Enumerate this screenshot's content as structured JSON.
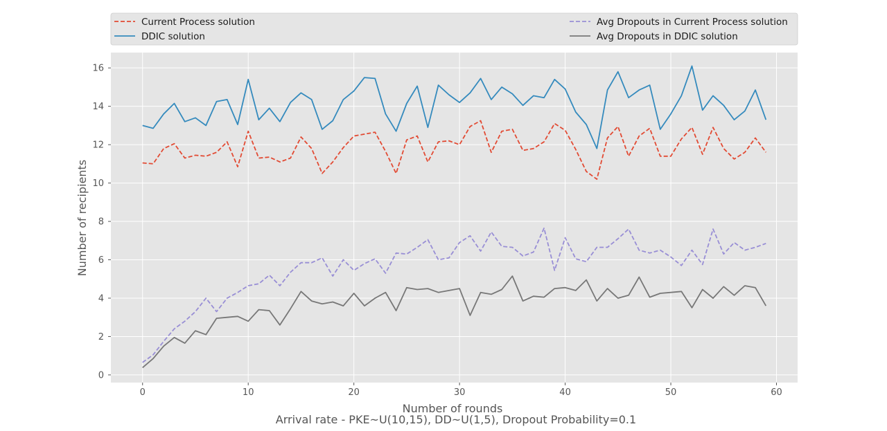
{
  "chart_data": {
    "type": "line",
    "title": "",
    "xlabel": "Number of rounds",
    "ylabel": "Number of recipients",
    "caption": "Arrival rate - PKE~U(10,15), DD~U(1,5), Dropout Probability=0.1",
    "xlim": [
      -3,
      62
    ],
    "ylim": [
      -0.4,
      16.8
    ],
    "xticks": [
      0,
      10,
      20,
      30,
      40,
      50,
      60
    ],
    "yticks": [
      0,
      2,
      4,
      6,
      8,
      10,
      12,
      14,
      16
    ],
    "grid": true,
    "legend_position": "top, above plot",
    "x": [
      0,
      1,
      2,
      3,
      4,
      5,
      6,
      7,
      8,
      9,
      10,
      11,
      12,
      13,
      14,
      15,
      16,
      17,
      18,
      19,
      20,
      21,
      22,
      23,
      24,
      25,
      26,
      27,
      28,
      29,
      30,
      31,
      32,
      33,
      34,
      35,
      36,
      37,
      38,
      39,
      40,
      41,
      42,
      43,
      44,
      45,
      46,
      47,
      48,
      49,
      50,
      51,
      52,
      53,
      54,
      55,
      56,
      57,
      58,
      59
    ],
    "series": [
      {
        "name": "Current Process solution",
        "color": "#e24a33",
        "dash": "dashed",
        "values": [
          11.05,
          11.0,
          11.8,
          12.05,
          11.3,
          11.45,
          11.4,
          11.6,
          12.15,
          10.85,
          12.7,
          11.3,
          11.35,
          11.1,
          11.3,
          12.4,
          11.8,
          10.5,
          11.1,
          11.85,
          12.45,
          12.55,
          12.65,
          11.65,
          10.5,
          12.25,
          12.45,
          11.1,
          12.15,
          12.2,
          12.0,
          12.95,
          13.25,
          11.6,
          12.7,
          12.8,
          11.7,
          11.8,
          12.15,
          13.1,
          12.75,
          11.75,
          10.6,
          10.2,
          12.35,
          12.95,
          11.4,
          12.45,
          12.85,
          11.4,
          11.4,
          12.3,
          12.9,
          11.5,
          12.9,
          11.8,
          11.25,
          11.6,
          12.35,
          11.6
        ]
      },
      {
        "name": "DDIC solution",
        "color": "#348abd",
        "dash": "solid",
        "values": [
          13.0,
          12.85,
          13.6,
          14.15,
          13.2,
          13.4,
          13.0,
          14.25,
          14.35,
          13.05,
          15.4,
          13.3,
          13.9,
          13.2,
          14.2,
          14.7,
          14.35,
          12.8,
          13.25,
          14.35,
          14.8,
          15.5,
          15.45,
          13.6,
          12.7,
          14.15,
          15.05,
          12.9,
          15.1,
          14.6,
          14.2,
          14.7,
          15.45,
          14.35,
          15.0,
          14.65,
          14.05,
          14.55,
          14.45,
          15.4,
          14.9,
          13.7,
          13.05,
          11.8,
          14.85,
          15.8,
          14.45,
          14.85,
          15.1,
          12.8,
          13.6,
          14.55,
          16.1,
          13.8,
          14.55,
          14.05,
          13.3,
          13.75,
          14.85,
          13.3
        ]
      },
      {
        "name": "Avg Dropouts in Current Process solution",
        "color": "#988ed5",
        "dash": "dashed",
        "values": [
          0.65,
          1.05,
          1.75,
          2.4,
          2.8,
          3.3,
          4.0,
          3.3,
          4.0,
          4.3,
          4.65,
          4.75,
          5.2,
          4.65,
          5.35,
          5.85,
          5.85,
          6.1,
          5.15,
          6.0,
          5.45,
          5.8,
          6.05,
          5.3,
          6.35,
          6.3,
          6.65,
          7.05,
          6.0,
          6.1,
          6.9,
          7.25,
          6.45,
          7.45,
          6.7,
          6.65,
          6.2,
          6.4,
          7.65,
          5.45,
          7.15,
          6.05,
          5.9,
          6.65,
          6.65,
          7.1,
          7.6,
          6.5,
          6.35,
          6.5,
          6.15,
          5.7,
          6.5,
          5.75,
          7.6,
          6.3,
          6.9,
          6.5,
          6.65,
          6.85
        ]
      },
      {
        "name": "Avg Dropouts in DDIC solution",
        "color": "#777777",
        "dash": "solid",
        "values": [
          0.38,
          0.85,
          1.5,
          1.95,
          1.65,
          2.3,
          2.1,
          2.95,
          3.0,
          3.05,
          2.8,
          3.4,
          3.35,
          2.6,
          3.45,
          4.35,
          3.85,
          3.7,
          3.8,
          3.6,
          4.25,
          3.6,
          4.0,
          4.3,
          3.35,
          4.55,
          4.45,
          4.5,
          4.3,
          4.4,
          4.5,
          3.1,
          4.3,
          4.2,
          4.45,
          5.15,
          3.85,
          4.1,
          4.05,
          4.5,
          4.55,
          4.4,
          4.95,
          3.85,
          4.5,
          4.0,
          4.15,
          5.1,
          4.05,
          4.25,
          4.3,
          4.35,
          3.5,
          4.45,
          4.0,
          4.6,
          4.15,
          4.65,
          4.55,
          3.6
        ]
      }
    ]
  }
}
